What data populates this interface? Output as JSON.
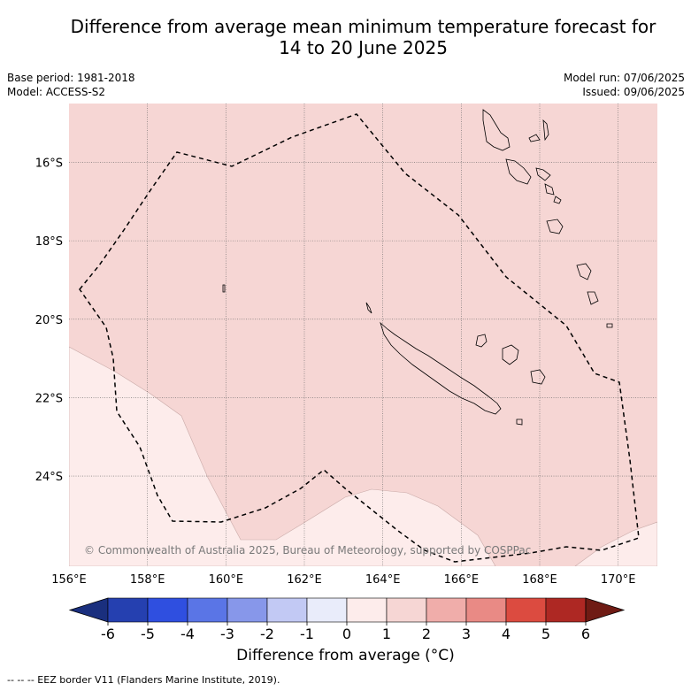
{
  "title": {
    "line1": "Difference from average mean minimum temperature forecast for",
    "line2": "14 to 20 June 2025"
  },
  "meta": {
    "base_period": "Base period: 1981-2018",
    "model": "Model: ACCESS-S2",
    "model_run": "Model run: 07/06/2025",
    "issued": "Issued: 09/06/2025"
  },
  "map": {
    "lon_range": [
      156,
      171
    ],
    "lat_range": [
      -26.3,
      -14.5
    ],
    "lat_ticks": [
      "16°S",
      "18°S",
      "20°S",
      "22°S",
      "24°S"
    ],
    "lon_ticks": [
      "156°E",
      "158°E",
      "160°E",
      "162°E",
      "164°E",
      "166°E",
      "168°E",
      "170°E"
    ],
    "copyright": "© Commonwealth of Australia 2025, Bureau of Meteorology, supported by COSPPac",
    "fill_colors": {
      "zero_to_one": "#fdeceb",
      "one_to_two": "#f6d6d4"
    }
  },
  "colorbar": {
    "tick_labels": [
      "-6",
      "-5",
      "-4",
      "-3",
      "-2",
      "-1",
      "0",
      "1",
      "2",
      "3",
      "4",
      "5",
      "6"
    ],
    "colors": [
      "#1a2f7e",
      "#2540b0",
      "#2f4fe0",
      "#5a75e6",
      "#8797ea",
      "#c2c9f4",
      "#e9ecfa",
      "#fdeceb",
      "#f6d6d4",
      "#f0adaa",
      "#e98a85",
      "#dc4b40",
      "#ae2823",
      "#6f1b14"
    ],
    "title": "Difference from average (°C)"
  },
  "footer": "--  --  -- EEZ border V11 (Flanders Marine Institute, 2019)."
}
